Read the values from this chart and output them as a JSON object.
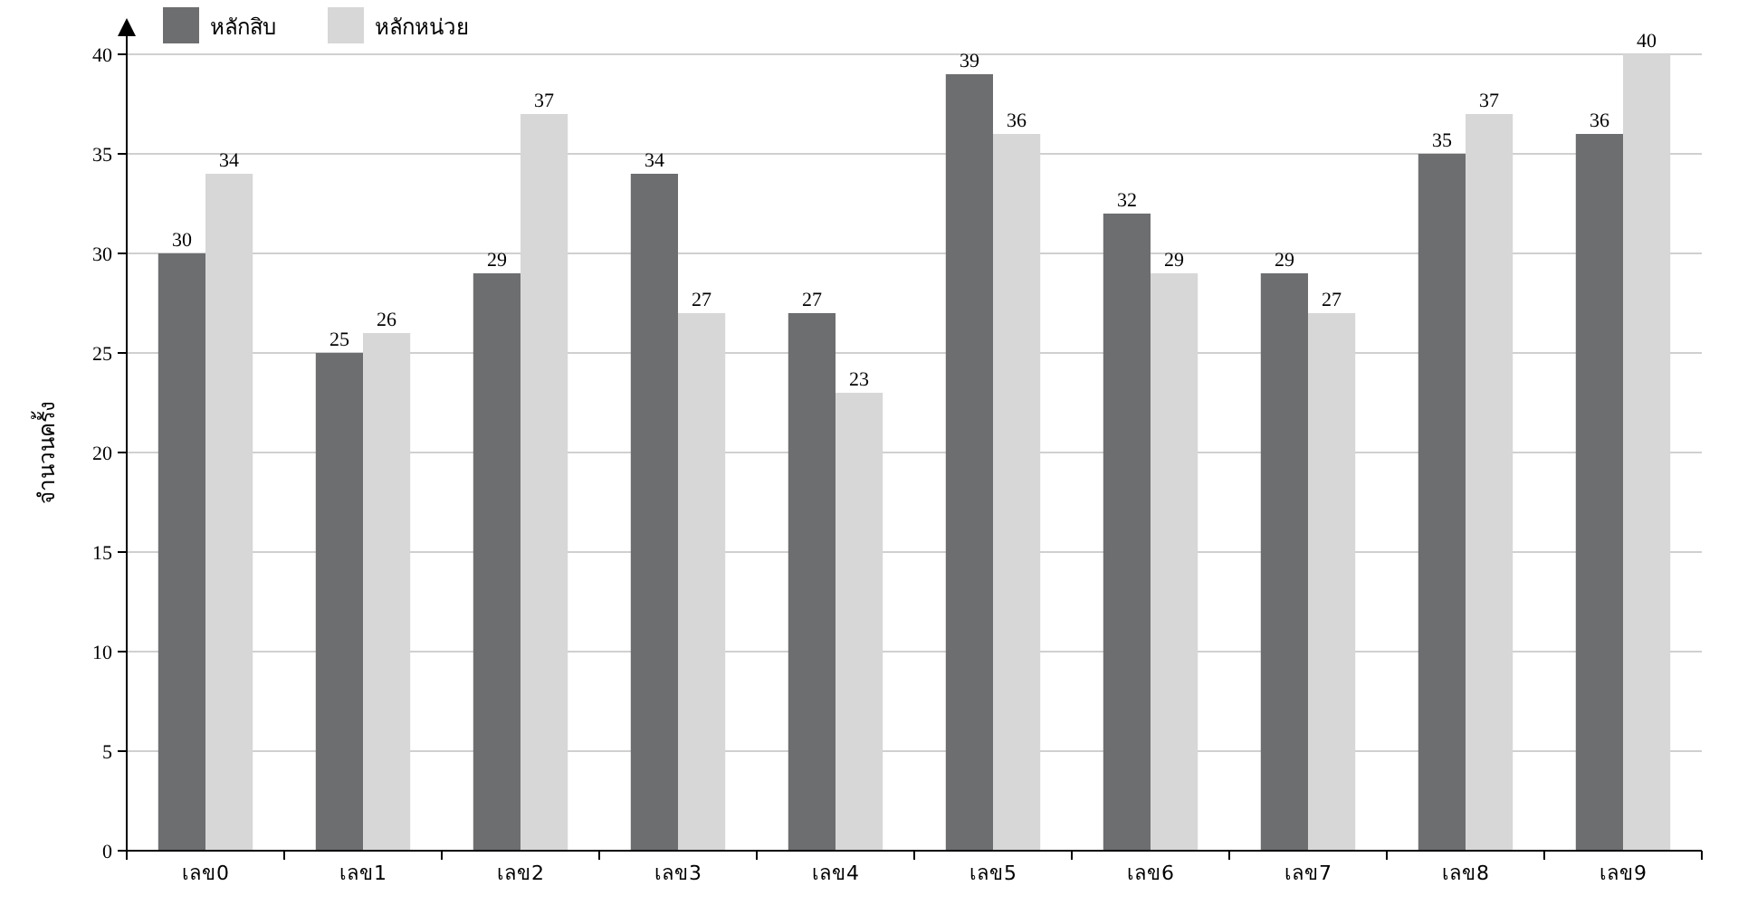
{
  "chart_data": {
    "type": "bar",
    "ylabel": "จำนวนครั้ง",
    "categories": [
      "เลข0",
      "เลข1",
      "เลข2",
      "เลข3",
      "เลข4",
      "เลข5",
      "เลข6",
      "เลข7",
      "เลข8",
      "เลข9"
    ],
    "series": [
      {
        "name": "หลักสิบ",
        "color": "#6d6e70",
        "values": [
          30,
          25,
          29,
          34,
          27,
          39,
          32,
          29,
          35,
          36
        ]
      },
      {
        "name": "หลักหน่วย",
        "color": "#d7d7d7",
        "values": [
          34,
          26,
          37,
          27,
          23,
          36,
          29,
          27,
          37,
          40
        ]
      }
    ],
    "ylim": [
      0,
      40
    ],
    "yticks": [
      0,
      5,
      10,
      15,
      20,
      25,
      30,
      35,
      40
    ],
    "grid": "y",
    "legend": "top left",
    "data_labels": true
  }
}
